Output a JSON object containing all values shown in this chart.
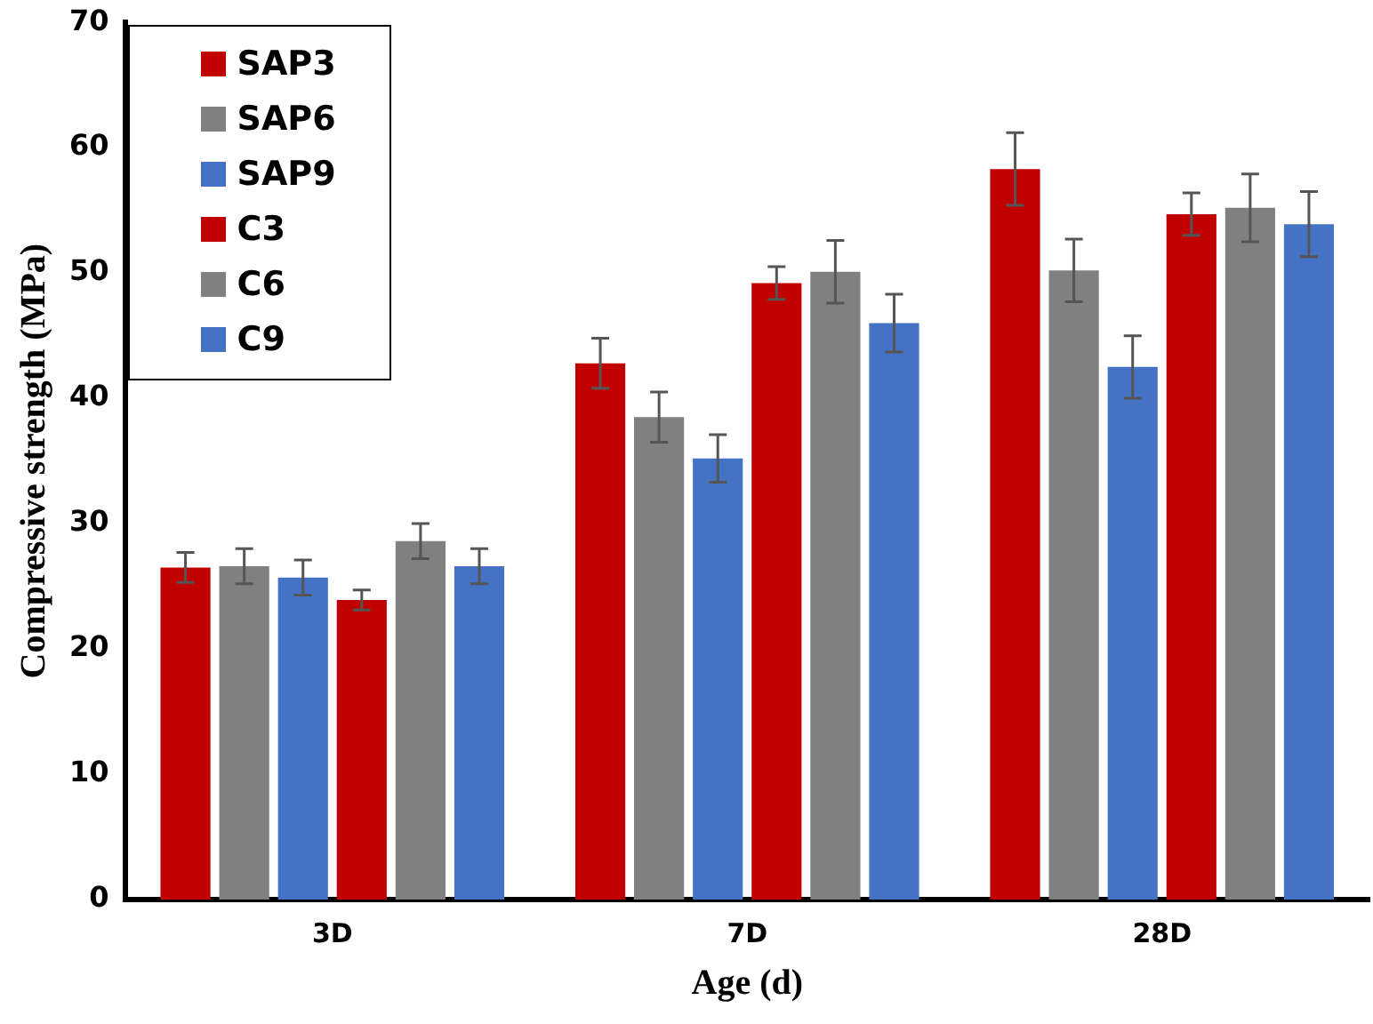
{
  "chart_data": {
    "type": "bar",
    "xlabel": "Age (d)",
    "ylabel": "Compressive strength (MPa)",
    "categories": [
      "3D",
      "7D",
      "28D"
    ],
    "series": [
      {
        "name": "SAP3",
        "color": "#c00000",
        "values": [
          26.5,
          42.8,
          58.3
        ],
        "errors": [
          1.2,
          2.0,
          2.9
        ]
      },
      {
        "name": "SAP6",
        "color": "#808080",
        "values": [
          26.6,
          38.5,
          50.2
        ],
        "errors": [
          1.4,
          2.0,
          2.5
        ]
      },
      {
        "name": "SAP9",
        "color": "#4472c4",
        "values": [
          25.7,
          35.2,
          42.5
        ],
        "errors": [
          1.4,
          1.9,
          2.5
        ]
      },
      {
        "name": "C3",
        "color": "#c00000",
        "values": [
          23.9,
          49.2,
          54.7
        ],
        "errors": [
          0.8,
          1.3,
          1.7
        ]
      },
      {
        "name": "C6",
        "color": "#808080",
        "values": [
          28.6,
          50.1,
          55.2
        ],
        "errors": [
          1.4,
          2.5,
          2.7
        ]
      },
      {
        "name": "C9",
        "color": "#4472c4",
        "values": [
          26.6,
          46.0,
          53.9
        ],
        "errors": [
          1.4,
          2.3,
          2.6
        ]
      }
    ],
    "ylim": [
      0,
      70
    ],
    "yticks": [
      0,
      10,
      20,
      30,
      40,
      50,
      60,
      70
    ],
    "grid": false,
    "legend": "top left"
  }
}
